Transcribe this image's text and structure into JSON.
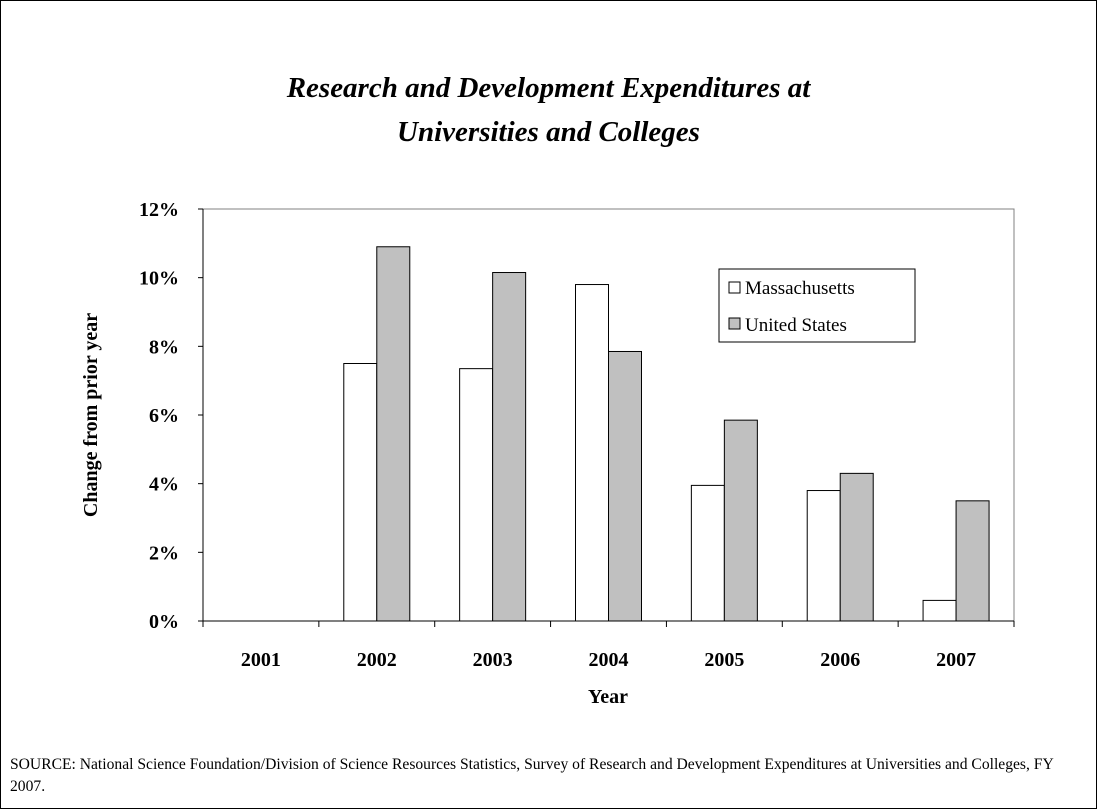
{
  "chart_data": {
    "type": "bar",
    "title_line1": "Research and Development Expenditures at",
    "title_line2": "Universities and Colleges",
    "xlabel": "Year",
    "ylabel": "Change from prior year",
    "categories": [
      "2001",
      "2002",
      "2003",
      "2004",
      "2005",
      "2006",
      "2007"
    ],
    "series": [
      {
        "name": "Massachusetts",
        "color": "#ffffff",
        "values": [
          null,
          7.5,
          7.35,
          9.8,
          3.95,
          3.8,
          0.6
        ]
      },
      {
        "name": "United States",
        "color": "#c0c0c0",
        "values": [
          null,
          10.9,
          10.15,
          7.85,
          5.85,
          4.3,
          3.5
        ]
      }
    ],
    "ylim": [
      0,
      12
    ],
    "yticks": [
      0,
      2,
      4,
      6,
      8,
      10,
      12
    ],
    "ytick_labels": [
      "0%",
      "2%",
      "4%",
      "6%",
      "8%",
      "10%",
      "12%"
    ],
    "grid": false,
    "legend_position": "top-right"
  },
  "source_note": "SOURCE:  National Science Foundation/Division of Science Resources Statistics, Survey of Research and Development Expenditures at Universities and Colleges, FY 2007."
}
